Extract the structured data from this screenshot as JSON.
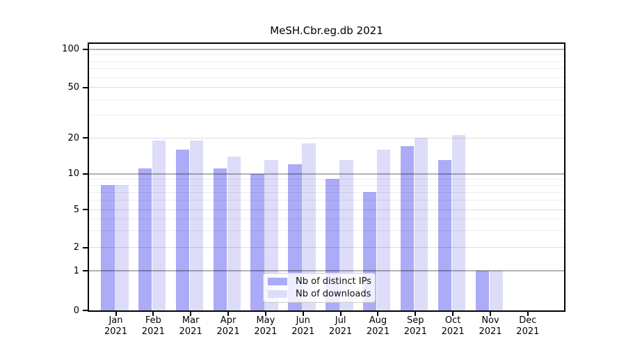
{
  "title": "MeSH.Cbr.eg.db 2021",
  "colors": {
    "distinct_ips": "#ABABF7",
    "downloads": "#DDDDF9",
    "axis": "#000000",
    "legend_border": "#cccccc",
    "grid_strong": "#adadad",
    "grid_mid": "#dfdfdf",
    "grid_minor": "#ededed"
  },
  "legend": {
    "items": [
      {
        "label": "Nb of distinct IPs",
        "series": "distinct_ips"
      },
      {
        "label": "Nb of downloads",
        "series": "downloads"
      }
    ]
  },
  "y_axis": {
    "scale": "symlog",
    "ticks": [
      {
        "label": "100",
        "value": 100
      },
      {
        "label": "50",
        "value": 50
      },
      {
        "label": "20",
        "value": 20
      },
      {
        "label": "10",
        "value": 10
      },
      {
        "label": "5",
        "value": 5
      },
      {
        "label": "2",
        "value": 2
      },
      {
        "label": "1",
        "value": 1
      },
      {
        "label": "0",
        "value": 0
      }
    ],
    "minor_values": [
      3,
      4,
      6,
      7,
      8,
      9,
      30,
      40,
      60,
      70,
      80,
      90
    ],
    "pow10_values": [
      1,
      10,
      100
    ]
  },
  "x_axis": {
    "months": [
      "Jan",
      "Feb",
      "Mar",
      "Apr",
      "May",
      "Jun",
      "Jul",
      "Aug",
      "Sep",
      "Oct",
      "Nov",
      "Dec"
    ],
    "year": "2021"
  },
  "chart_data": {
    "type": "bar",
    "title": "MeSH.Cbr.eg.db 2021",
    "categories": [
      "Jan 2021",
      "Feb 2021",
      "Mar 2021",
      "Apr 2021",
      "May 2021",
      "Jun 2021",
      "Jul 2021",
      "Aug 2021",
      "Sep 2021",
      "Oct 2021",
      "Nov 2021",
      "Dec 2021"
    ],
    "series": [
      {
        "name": "Nb of distinct IPs",
        "color": "#ABABF7",
        "values": [
          8,
          11,
          16,
          11,
          10,
          12,
          9,
          7,
          17,
          13,
          1,
          0
        ]
      },
      {
        "name": "Nb of downloads",
        "color": "#DDDDF9",
        "values": [
          8,
          19,
          19,
          14,
          13,
          18,
          13,
          16,
          20,
          21,
          1,
          0
        ]
      }
    ],
    "xlabel": "",
    "ylabel": "",
    "yscale": "symlog",
    "yticks": [
      0,
      1,
      2,
      5,
      10,
      20,
      50,
      100
    ],
    "ylim": [
      0,
      110
    ],
    "grid": true,
    "legend_position": "inside-bottom-center"
  }
}
